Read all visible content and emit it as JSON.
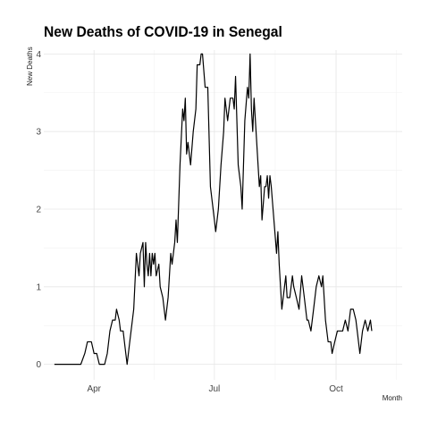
{
  "chart_data": {
    "type": "line",
    "title": "New Deaths of COVID-19 in Senegal",
    "xlabel": "Month",
    "ylabel": "New Deaths",
    "x_tick_labels": [
      "Apr",
      "Jul",
      "Oct"
    ],
    "y_ticks": [
      0,
      1,
      2,
      3,
      4
    ],
    "ylim": [
      -0.2,
      4.05
    ],
    "xlim": [
      "2020-02-23",
      "2020-11-20"
    ],
    "x_ticks": [
      "2020-04-01",
      "2020-07-01",
      "2020-10-01"
    ],
    "grid": true,
    "color": "#000000",
    "series": [
      {
        "values": [
          [
            "2020-03-02",
            0
          ],
          [
            "2020-03-06",
            0
          ],
          [
            "2020-03-10",
            0
          ],
          [
            "2020-03-14",
            0
          ],
          [
            "2020-03-18",
            0
          ],
          [
            "2020-03-22",
            0
          ],
          [
            "2020-03-25",
            0.14
          ],
          [
            "2020-03-27",
            0.29
          ],
          [
            "2020-03-30",
            0.29
          ],
          [
            "2020-04-01",
            0.14
          ],
          [
            "2020-04-03",
            0.14
          ],
          [
            "2020-04-05",
            0
          ],
          [
            "2020-04-09",
            0
          ],
          [
            "2020-04-11",
            0.14
          ],
          [
            "2020-04-13",
            0.43
          ],
          [
            "2020-04-15",
            0.57
          ],
          [
            "2020-04-17",
            0.57
          ],
          [
            "2020-04-18",
            0.71
          ],
          [
            "2020-04-20",
            0.57
          ],
          [
            "2020-04-21",
            0.43
          ],
          [
            "2020-04-23",
            0.43
          ],
          [
            "2020-04-25",
            0.14
          ],
          [
            "2020-04-26",
            0
          ],
          [
            "2020-04-28",
            0.29
          ],
          [
            "2020-04-30",
            0.57
          ],
          [
            "2020-05-01",
            0.71
          ],
          [
            "2020-05-03",
            1.43
          ],
          [
            "2020-05-05",
            1.14
          ],
          [
            "2020-05-06",
            1.43
          ],
          [
            "2020-05-08",
            1.57
          ],
          [
            "2020-05-09",
            1.0
          ],
          [
            "2020-05-10",
            1.57
          ],
          [
            "2020-05-11",
            1.29
          ],
          [
            "2020-05-12",
            1.14
          ],
          [
            "2020-05-13",
            1.43
          ],
          [
            "2020-05-14",
            1.14
          ],
          [
            "2020-05-15",
            1.43
          ],
          [
            "2020-05-16",
            1.29
          ],
          [
            "2020-05-17",
            1.43
          ],
          [
            "2020-05-18",
            1.14
          ],
          [
            "2020-05-20",
            1.29
          ],
          [
            "2020-05-21",
            1.0
          ],
          [
            "2020-05-23",
            0.86
          ],
          [
            "2020-05-25",
            0.57
          ],
          [
            "2020-05-27",
            0.86
          ],
          [
            "2020-05-29",
            1.43
          ],
          [
            "2020-05-30",
            1.29
          ],
          [
            "2020-06-01",
            1.57
          ],
          [
            "2020-06-02",
            1.86
          ],
          [
            "2020-06-03",
            1.57
          ],
          [
            "2020-06-05",
            2.57
          ],
          [
            "2020-06-07",
            3.29
          ],
          [
            "2020-06-08",
            3.14
          ],
          [
            "2020-06-09",
            3.43
          ],
          [
            "2020-06-10",
            2.71
          ],
          [
            "2020-06-11",
            2.86
          ],
          [
            "2020-06-13",
            2.57
          ],
          [
            "2020-06-15",
            3.0
          ],
          [
            "2020-06-17",
            3.29
          ],
          [
            "2020-06-18",
            3.86
          ],
          [
            "2020-06-20",
            3.86
          ],
          [
            "2020-06-21",
            4.0
          ],
          [
            "2020-06-22",
            4.0
          ],
          [
            "2020-06-24",
            3.57
          ],
          [
            "2020-06-26",
            3.57
          ],
          [
            "2020-06-28",
            2.29
          ],
          [
            "2020-07-01",
            1.86
          ],
          [
            "2020-07-02",
            1.71
          ],
          [
            "2020-07-04",
            2.0
          ],
          [
            "2020-07-06",
            2.57
          ],
          [
            "2020-07-08",
            3.0
          ],
          [
            "2020-07-09",
            3.43
          ],
          [
            "2020-07-11",
            3.14
          ],
          [
            "2020-07-13",
            3.43
          ],
          [
            "2020-07-15",
            3.43
          ],
          [
            "2020-07-16",
            3.29
          ],
          [
            "2020-07-17",
            3.71
          ],
          [
            "2020-07-19",
            2.57
          ],
          [
            "2020-07-21",
            2.29
          ],
          [
            "2020-07-22",
            2.0
          ],
          [
            "2020-07-24",
            3.14
          ],
          [
            "2020-07-26",
            3.57
          ],
          [
            "2020-07-27",
            3.43
          ],
          [
            "2020-07-28",
            4.0
          ],
          [
            "2020-07-29",
            3.29
          ],
          [
            "2020-07-30",
            3.0
          ],
          [
            "2020-07-31",
            3.43
          ],
          [
            "2020-08-02",
            2.86
          ],
          [
            "2020-08-04",
            2.29
          ],
          [
            "2020-08-05",
            2.43
          ],
          [
            "2020-08-06",
            1.86
          ],
          [
            "2020-08-08",
            2.29
          ],
          [
            "2020-08-09",
            2.29
          ],
          [
            "2020-08-10",
            2.43
          ],
          [
            "2020-08-11",
            2.14
          ],
          [
            "2020-08-12",
            2.43
          ],
          [
            "2020-08-13",
            2.29
          ],
          [
            "2020-08-15",
            1.86
          ],
          [
            "2020-08-17",
            1.43
          ],
          [
            "2020-08-18",
            1.71
          ],
          [
            "2020-08-19",
            1.29
          ],
          [
            "2020-08-21",
            0.71
          ],
          [
            "2020-08-23",
            1.0
          ],
          [
            "2020-08-24",
            1.14
          ],
          [
            "2020-08-25",
            0.86
          ],
          [
            "2020-08-27",
            0.86
          ],
          [
            "2020-08-29",
            1.14
          ],
          [
            "2020-08-30",
            1.0
          ],
          [
            "2020-09-01",
            0.86
          ],
          [
            "2020-09-03",
            0.71
          ],
          [
            "2020-09-05",
            1.14
          ],
          [
            "2020-09-07",
            0.86
          ],
          [
            "2020-09-09",
            0.57
          ],
          [
            "2020-09-10",
            0.57
          ],
          [
            "2020-09-12",
            0.43
          ],
          [
            "2020-09-14",
            0.71
          ],
          [
            "2020-09-16",
            1.0
          ],
          [
            "2020-09-18",
            1.14
          ],
          [
            "2020-09-20",
            1.0
          ],
          [
            "2020-09-21",
            1.14
          ],
          [
            "2020-09-23",
            0.57
          ],
          [
            "2020-09-25",
            0.29
          ],
          [
            "2020-09-27",
            0.29
          ],
          [
            "2020-09-28",
            0.14
          ],
          [
            "2020-09-30",
            0.29
          ],
          [
            "2020-10-02",
            0.43
          ],
          [
            "2020-10-04",
            0.43
          ],
          [
            "2020-10-06",
            0.43
          ],
          [
            "2020-10-08",
            0.57
          ],
          [
            "2020-10-10",
            0.43
          ],
          [
            "2020-10-12",
            0.71
          ],
          [
            "2020-10-14",
            0.71
          ],
          [
            "2020-10-16",
            0.57
          ],
          [
            "2020-10-17",
            0.43
          ],
          [
            "2020-10-19",
            0.14
          ],
          [
            "2020-10-21",
            0.43
          ],
          [
            "2020-10-23",
            0.57
          ],
          [
            "2020-10-25",
            0.43
          ],
          [
            "2020-10-27",
            0.57
          ],
          [
            "2020-10-28",
            0.43
          ]
        ]
      }
    ]
  }
}
